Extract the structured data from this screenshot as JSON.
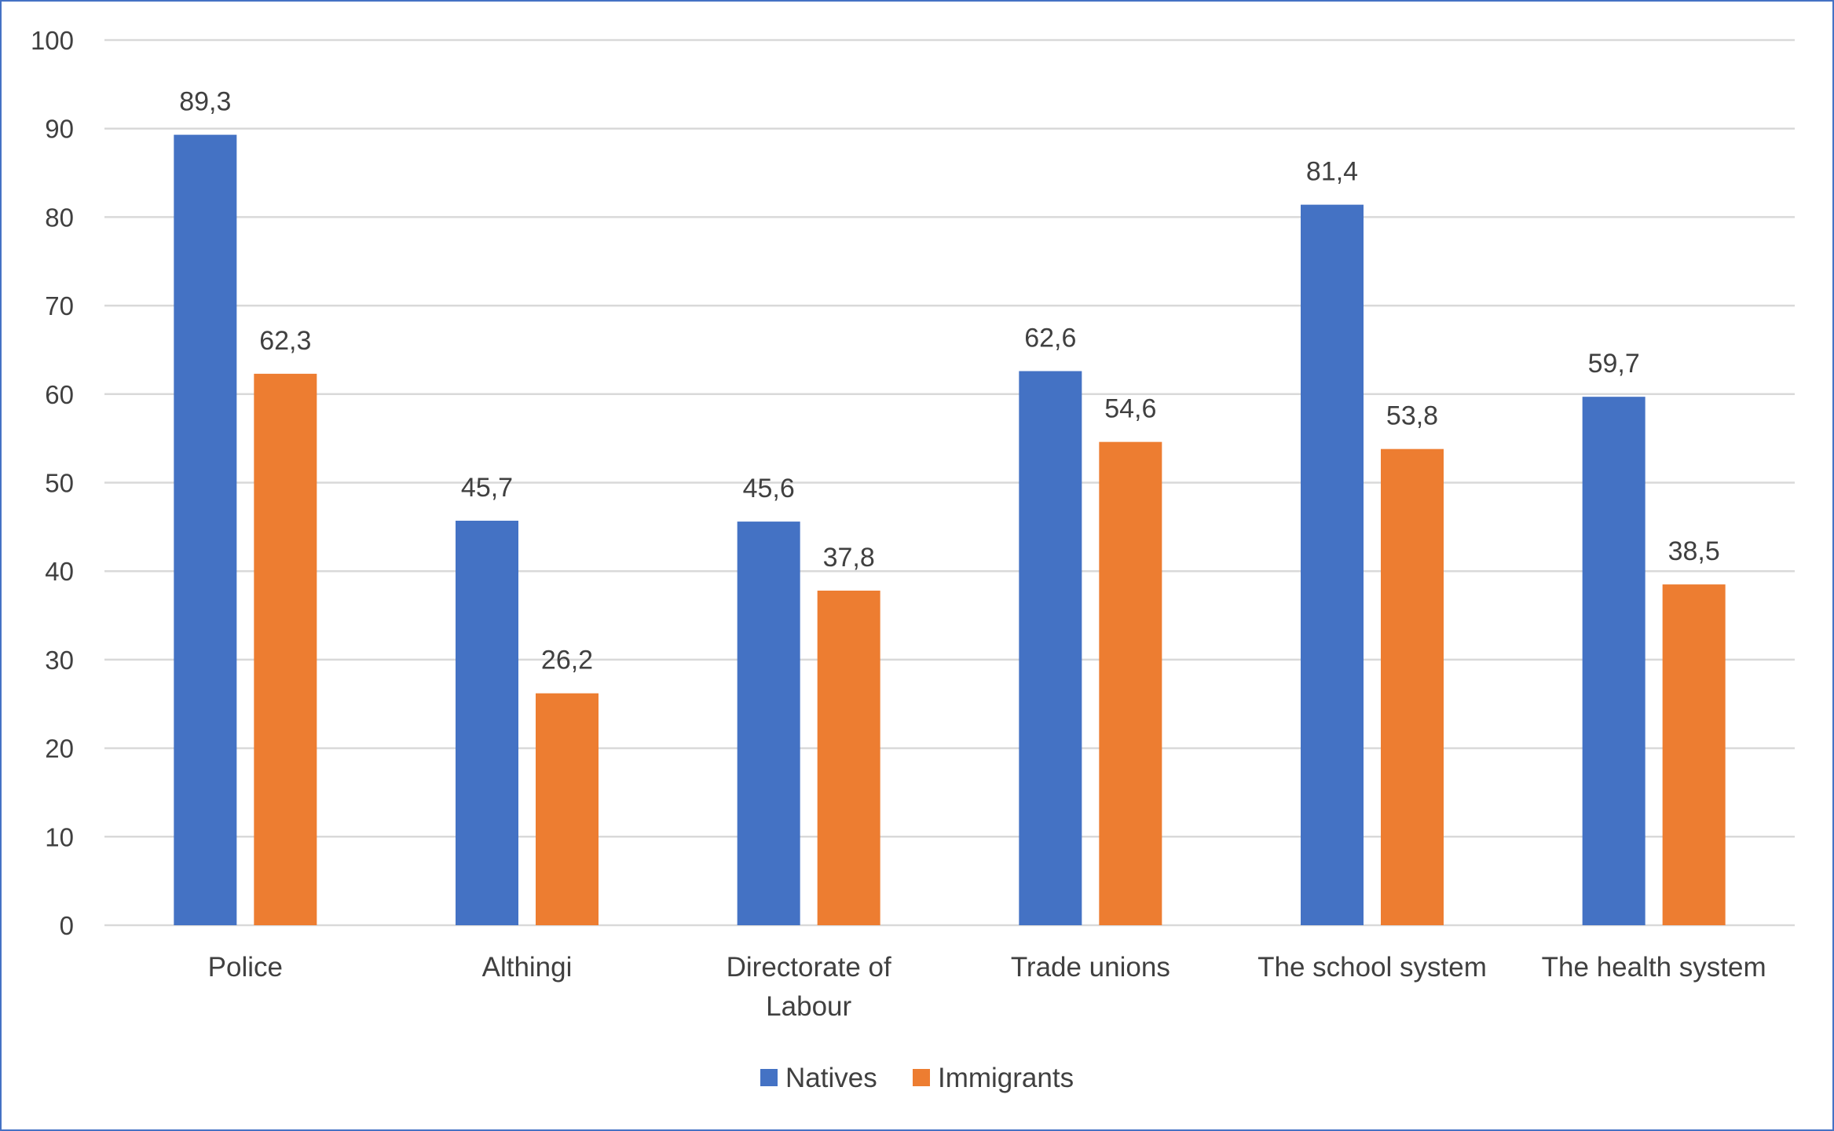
{
  "chart_data": {
    "type": "bar",
    "categories": [
      [
        "Police"
      ],
      [
        "Althingi"
      ],
      [
        "Directorate of",
        "Labour"
      ],
      [
        "Trade unions"
      ],
      [
        "The school system"
      ],
      [
        "The health system"
      ]
    ],
    "series": [
      {
        "name": "Natives",
        "color": "#4472c4",
        "values": [
          89.3,
          45.7,
          45.6,
          62.6,
          81.4,
          59.7
        ],
        "labels": [
          "89,3",
          "45,7",
          "45,6",
          "62,6",
          "81,4",
          "59,7"
        ]
      },
      {
        "name": "Immigrants",
        "color": "#ed7d31",
        "values": [
          62.3,
          26.2,
          37.8,
          54.6,
          53.8,
          38.5
        ],
        "labels": [
          "62,3",
          "26,2",
          "37,8",
          "54,6",
          "53,8",
          "38,5"
        ]
      }
    ],
    "ylim": [
      0,
      100
    ],
    "yticks": [
      0,
      10,
      20,
      30,
      40,
      50,
      60,
      70,
      80,
      90,
      100
    ],
    "grid": true,
    "legend_position": "bottom",
    "title": "",
    "xlabel": "",
    "ylabel": ""
  }
}
